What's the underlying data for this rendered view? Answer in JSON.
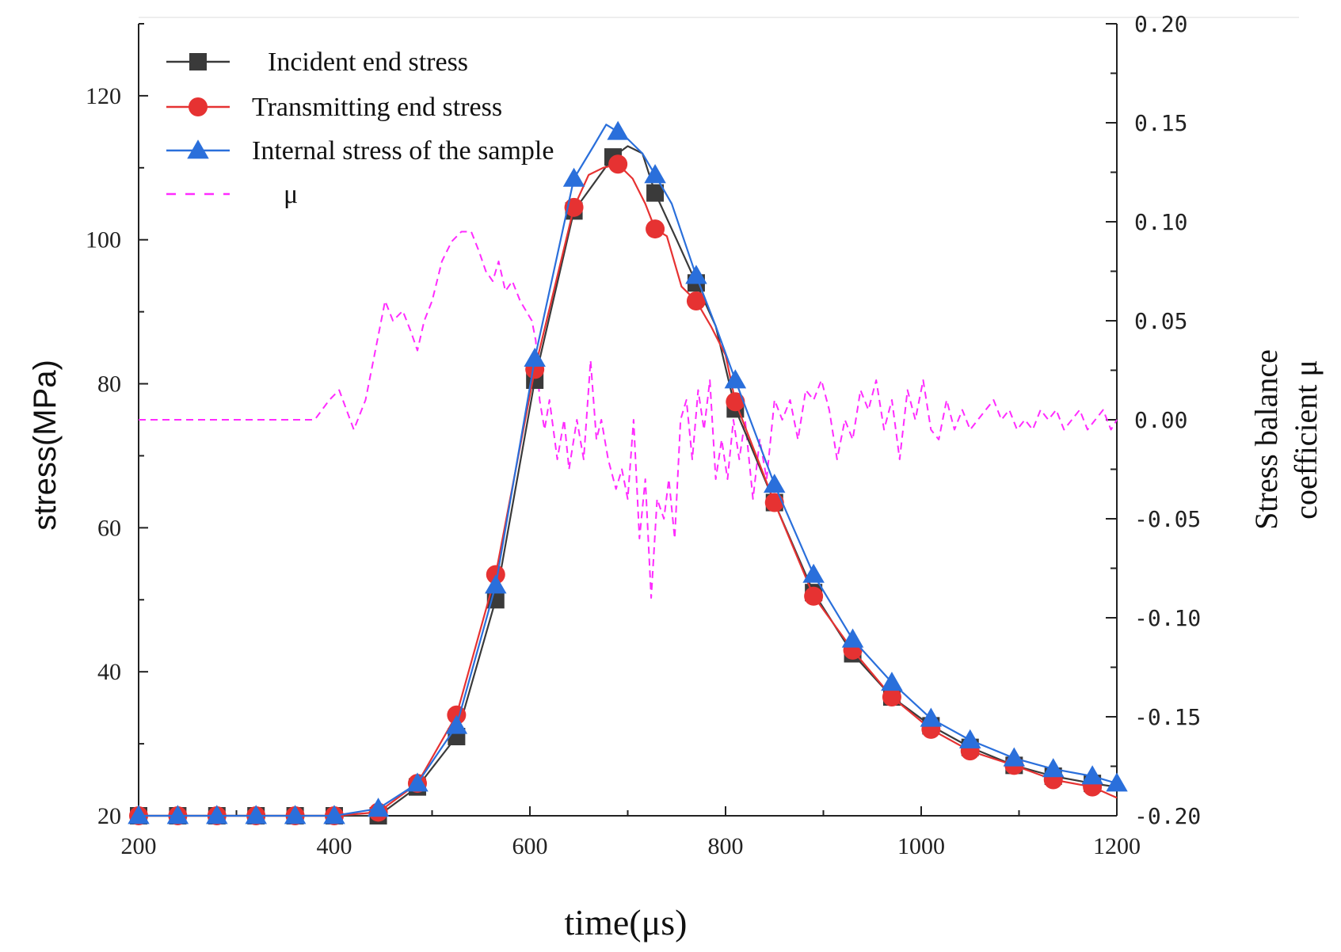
{
  "chart_data": {
    "type": "line",
    "xlabel": "time(μs)",
    "ylabel": "stress(MPa)",
    "y2label_lines": [
      "Stress balance",
      "coefficient μ"
    ],
    "xlim": [
      200,
      1200
    ],
    "ylim": [
      20,
      130
    ],
    "y2lim": [
      -0.2,
      0.2
    ],
    "xticks": [
      200,
      400,
      600,
      800,
      1000,
      1200
    ],
    "yticks": [
      20,
      40,
      60,
      80,
      100,
      120
    ],
    "y2ticks": [
      -0.2,
      -0.15,
      -0.1,
      -0.05,
      0.0,
      0.05,
      0.1,
      0.15,
      0.2
    ],
    "xtick_labels": [
      "200",
      "400",
      "600",
      "800",
      "1000",
      "1200"
    ],
    "ytick_labels": [
      "20",
      "40",
      "60",
      "80",
      "100",
      "120"
    ],
    "y2tick_labels": [
      "-0.20",
      "-0.15",
      "-0.10",
      "-0.05",
      "0.00",
      "0.05",
      "0.10",
      "0.15",
      "0.20"
    ],
    "legend_position": "top-left",
    "series": [
      {
        "name": "Incident end stress",
        "color": "#3a3a3a",
        "marker": "square",
        "axis": "left",
        "x": [
          200,
          240,
          280,
          320,
          360,
          400,
          445,
          485,
          525,
          565,
          605,
          645,
          685,
          700,
          715,
          728,
          750,
          770,
          790,
          810,
          850,
          890,
          930,
          970,
          1010,
          1050,
          1095,
          1135,
          1175,
          1200
        ],
        "y": [
          20,
          20,
          20,
          20,
          20,
          20,
          20,
          24,
          31,
          50,
          80.5,
          104,
          111.5,
          113,
          112,
          106.5,
          100,
          94,
          88,
          76.5,
          63.5,
          51,
          42.5,
          36.5,
          32.5,
          29.5,
          27,
          25.5,
          24.5,
          24
        ],
        "marker_x": [
          200,
          240,
          280,
          320,
          360,
          400,
          445,
          485,
          525,
          565,
          605,
          645,
          685,
          728,
          770,
          810,
          850,
          890,
          930,
          970,
          1010,
          1050,
          1095,
          1135,
          1175
        ]
      },
      {
        "name": "Transmitting end stress",
        "color": "#e63232",
        "marker": "circle",
        "axis": "left",
        "x": [
          200,
          240,
          280,
          320,
          360,
          400,
          445,
          485,
          525,
          565,
          605,
          645,
          660,
          675,
          690,
          705,
          718,
          728,
          740,
          755,
          770,
          785,
          800,
          810,
          850,
          890,
          930,
          970,
          1010,
          1050,
          1095,
          1135,
          1175,
          1200
        ],
        "y": [
          20,
          20,
          20,
          20,
          20,
          20,
          20.5,
          24.5,
          34,
          53.5,
          82,
          104.5,
          109,
          110,
          110.5,
          108.5,
          105,
          101.5,
          100.5,
          93.5,
          91.5,
          88,
          84,
          77.5,
          63.5,
          50.5,
          43,
          36.5,
          32,
          29,
          27,
          25,
          24,
          22.5
        ],
        "marker_x": [
          200,
          240,
          280,
          320,
          360,
          400,
          445,
          485,
          525,
          565,
          605,
          645,
          690,
          728,
          770,
          810,
          850,
          890,
          930,
          970,
          1010,
          1050,
          1095,
          1135,
          1175
        ]
      },
      {
        "name": "Internal stress of the sample",
        "color": "#2a6fdb",
        "marker": "triangle",
        "axis": "left",
        "x": [
          200,
          240,
          280,
          320,
          360,
          400,
          445,
          485,
          525,
          565,
          605,
          645,
          665,
          678,
          690,
          700,
          715,
          728,
          745,
          770,
          790,
          810,
          850,
          890,
          930,
          970,
          1010,
          1050,
          1095,
          1135,
          1175,
          1200
        ],
        "y": [
          20,
          20,
          20,
          20,
          20,
          20,
          21,
          24.5,
          32.5,
          52,
          83.5,
          108.5,
          113,
          116,
          115,
          114,
          112,
          109,
          105,
          95,
          88,
          80.5,
          66,
          53.5,
          44.5,
          38.5,
          33.5,
          30.5,
          28,
          26.5,
          25.5,
          24.5
        ],
        "marker_x": [
          200,
          240,
          280,
          320,
          360,
          400,
          445,
          485,
          525,
          565,
          605,
          645,
          690,
          728,
          770,
          810,
          850,
          890,
          930,
          970,
          1010,
          1050,
          1095,
          1135,
          1175,
          1200
        ]
      },
      {
        "name": "μ",
        "color": "#ff2bff",
        "style": "dashed",
        "axis": "right",
        "x": [
          200,
          250,
          300,
          350,
          380,
          395,
          405,
          420,
          432,
          440,
          452,
          460,
          470,
          478,
          485,
          492,
          500,
          510,
          520,
          530,
          540,
          548,
          555,
          562,
          568,
          575,
          582,
          590,
          596,
          602,
          606,
          610,
          615,
          620,
          628,
          635,
          640,
          648,
          655,
          662,
          668,
          673,
          680,
          688,
          694,
          700,
          706,
          712,
          718,
          724,
          730,
          737,
          742,
          748,
          754,
          760,
          766,
          772,
          778,
          784,
          790,
          796,
          802,
          808,
          814,
          820,
          828,
          835,
          842,
          850,
          858,
          866,
          874,
          882,
          890,
          898,
          906,
          914,
          922,
          930,
          938,
          946,
          954,
          962,
          970,
          978,
          986,
          994,
          1002,
          1010,
          1018,
          1026,
          1034,
          1042,
          1050,
          1058,
          1066,
          1074,
          1082,
          1090,
          1098,
          1106,
          1114,
          1122,
          1130,
          1138,
          1146,
          1154,
          1162,
          1170,
          1178,
          1186,
          1194,
          1200
        ],
        "y": [
          0.0,
          0.0,
          0.0,
          0.0,
          0.0,
          0.01,
          0.015,
          -0.005,
          0.01,
          0.03,
          0.06,
          0.05,
          0.055,
          0.045,
          0.035,
          0.05,
          0.06,
          0.08,
          0.09,
          0.095,
          0.095,
          0.085,
          0.075,
          0.07,
          0.08,
          0.065,
          0.07,
          0.06,
          0.055,
          0.05,
          0.04,
          0.01,
          -0.005,
          0.01,
          -0.02,
          0.0,
          -0.025,
          0.0,
          -0.02,
          0.03,
          -0.01,
          0.0,
          -0.02,
          -0.035,
          -0.025,
          -0.04,
          0.0,
          -0.06,
          -0.03,
          -0.09,
          -0.04,
          -0.05,
          -0.03,
          -0.06,
          0.0,
          0.01,
          -0.02,
          0.015,
          -0.005,
          0.02,
          -0.03,
          -0.01,
          -0.03,
          0.0,
          -0.02,
          0.0,
          -0.04,
          -0.01,
          -0.03,
          0.01,
          0.0,
          0.01,
          -0.01,
          0.015,
          0.01,
          0.02,
          0.005,
          -0.02,
          0.0,
          -0.01,
          0.015,
          0.005,
          0.02,
          -0.005,
          0.01,
          -0.02,
          0.015,
          0.0,
          0.02,
          -0.005,
          -0.01,
          0.01,
          -0.005,
          0.005,
          -0.005,
          0.0,
          0.005,
          0.01,
          0.0,
          0.005,
          -0.005,
          0.0,
          -0.005,
          0.005,
          0.0,
          0.005,
          -0.005,
          0.0,
          0.005,
          -0.005,
          0.0,
          0.005,
          -0.005,
          0.0
        ]
      }
    ]
  }
}
